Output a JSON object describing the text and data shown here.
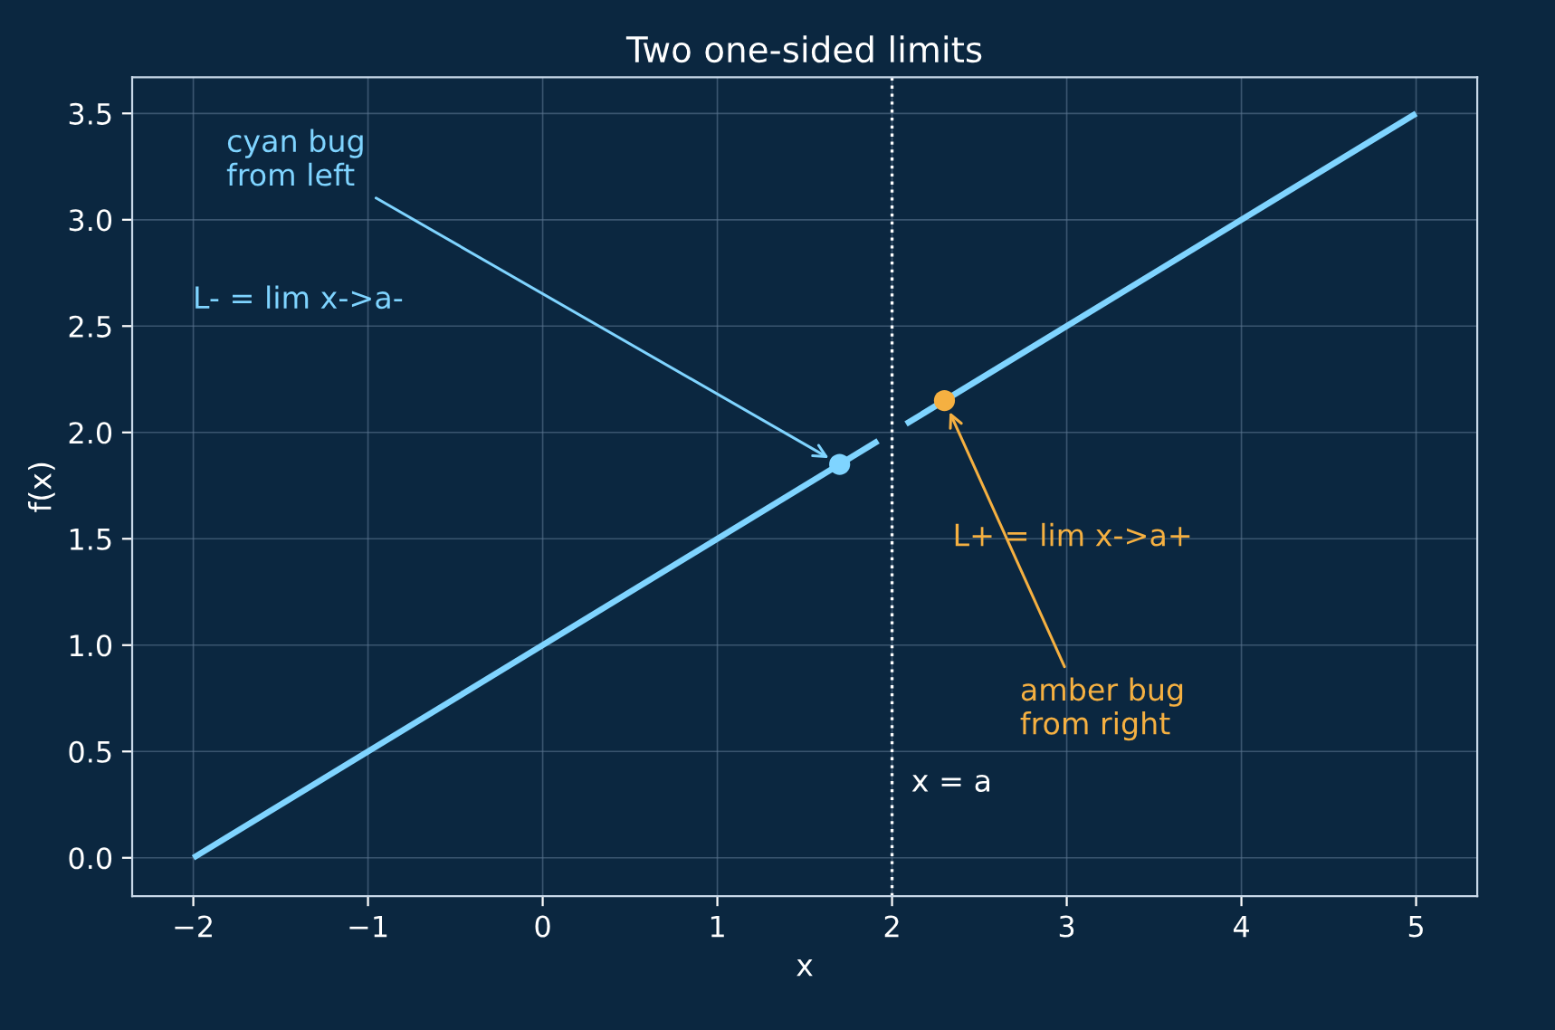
{
  "chart_data": {
    "type": "line",
    "title": "Two one-sided limits",
    "xlabel": "x",
    "ylabel": "f(x)",
    "series": [
      {
        "color": "#7fd4ff",
        "x": [
          -2,
          1.92
        ],
        "values": [
          0,
          1.96
        ]
      },
      {
        "color": "#7fd4ff",
        "x": [
          2.08,
          5
        ],
        "values": [
          2.04,
          3.5
        ]
      },
      {
        "type": "scatter",
        "color": "#7fd4ff",
        "x": [
          1.7
        ],
        "values": [
          1.85
        ]
      },
      {
        "type": "scatter",
        "color": "#f5b041",
        "x": [
          2.3
        ],
        "values": [
          2.15
        ]
      }
    ],
    "annotations": [
      {
        "text": "cyan bug\nfrom left",
        "x": 1.7,
        "y": 1.85
      },
      "L- = lim x->a-",
      "L+ = lim x->a+",
      {
        "text": "amber bug\nfrom right",
        "x": 2.3,
        "y": 2.15
      }
    ],
    "ref_lines": [
      {
        "axis": "x",
        "value": 2,
        "label": "x = a",
        "color": "#ffffff",
        "line_style": "dotted"
      }
    ],
    "xlim": [
      -2.35,
      5.35
    ],
    "ylim": [
      -0.18,
      3.67
    ],
    "xticks": [
      {
        "value": -2,
        "label": "−2"
      },
      {
        "value": -1,
        "label": "−1"
      },
      0,
      1,
      2,
      3,
      4,
      5
    ],
    "yticks": [
      {
        "value": 0,
        "label": "0.0"
      },
      {
        "value": 0.5,
        "label": "0.5"
      },
      {
        "value": 1,
        "label": "1.0"
      },
      {
        "value": 1.5,
        "label": "1.5"
      },
      {
        "value": 2,
        "label": "2.0"
      },
      {
        "value": 2.5,
        "label": "2.5"
      },
      {
        "value": 3,
        "label": "3.0"
      },
      {
        "value": 3.5,
        "label": "3.5"
      }
    ],
    "grid": true
  }
}
